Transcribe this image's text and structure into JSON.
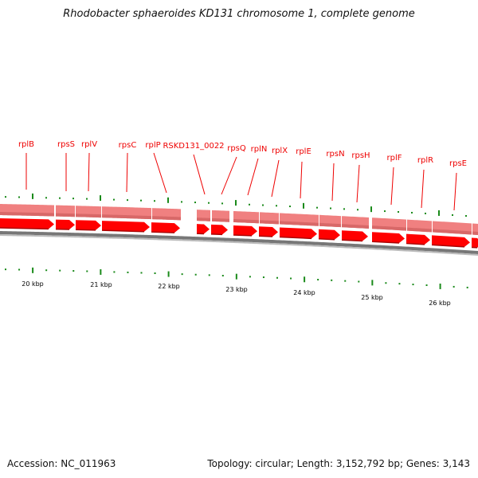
{
  "title": "Rhodobacter sphaeroides KD131 chromosome 1, complete genome",
  "accession": "Accession: NC_011963",
  "summary": "Topology: circular; Length: 3,152,792 bp; Genes: 3,143",
  "gene_labels": [
    "rplB",
    "rpsS",
    "rplV",
    "rpsC",
    "rplP",
    "RSKD131_0022",
    "rpsQ",
    "rplN",
    "rplX",
    "rplE",
    "rpsN",
    "rpsH",
    "rplF",
    "rplR",
    "rpsE"
  ],
  "scale_labels": [
    "20 kbp",
    "21 kbp",
    "22 kbp",
    "23 kbp",
    "24 kbp",
    "25 kbp",
    "26 kbp"
  ],
  "colors": {
    "gene": "#ff0000",
    "gene_band": "#f08080",
    "label": "#ee0000",
    "tick": "#1a8a1a",
    "backbone": "#777777"
  }
}
